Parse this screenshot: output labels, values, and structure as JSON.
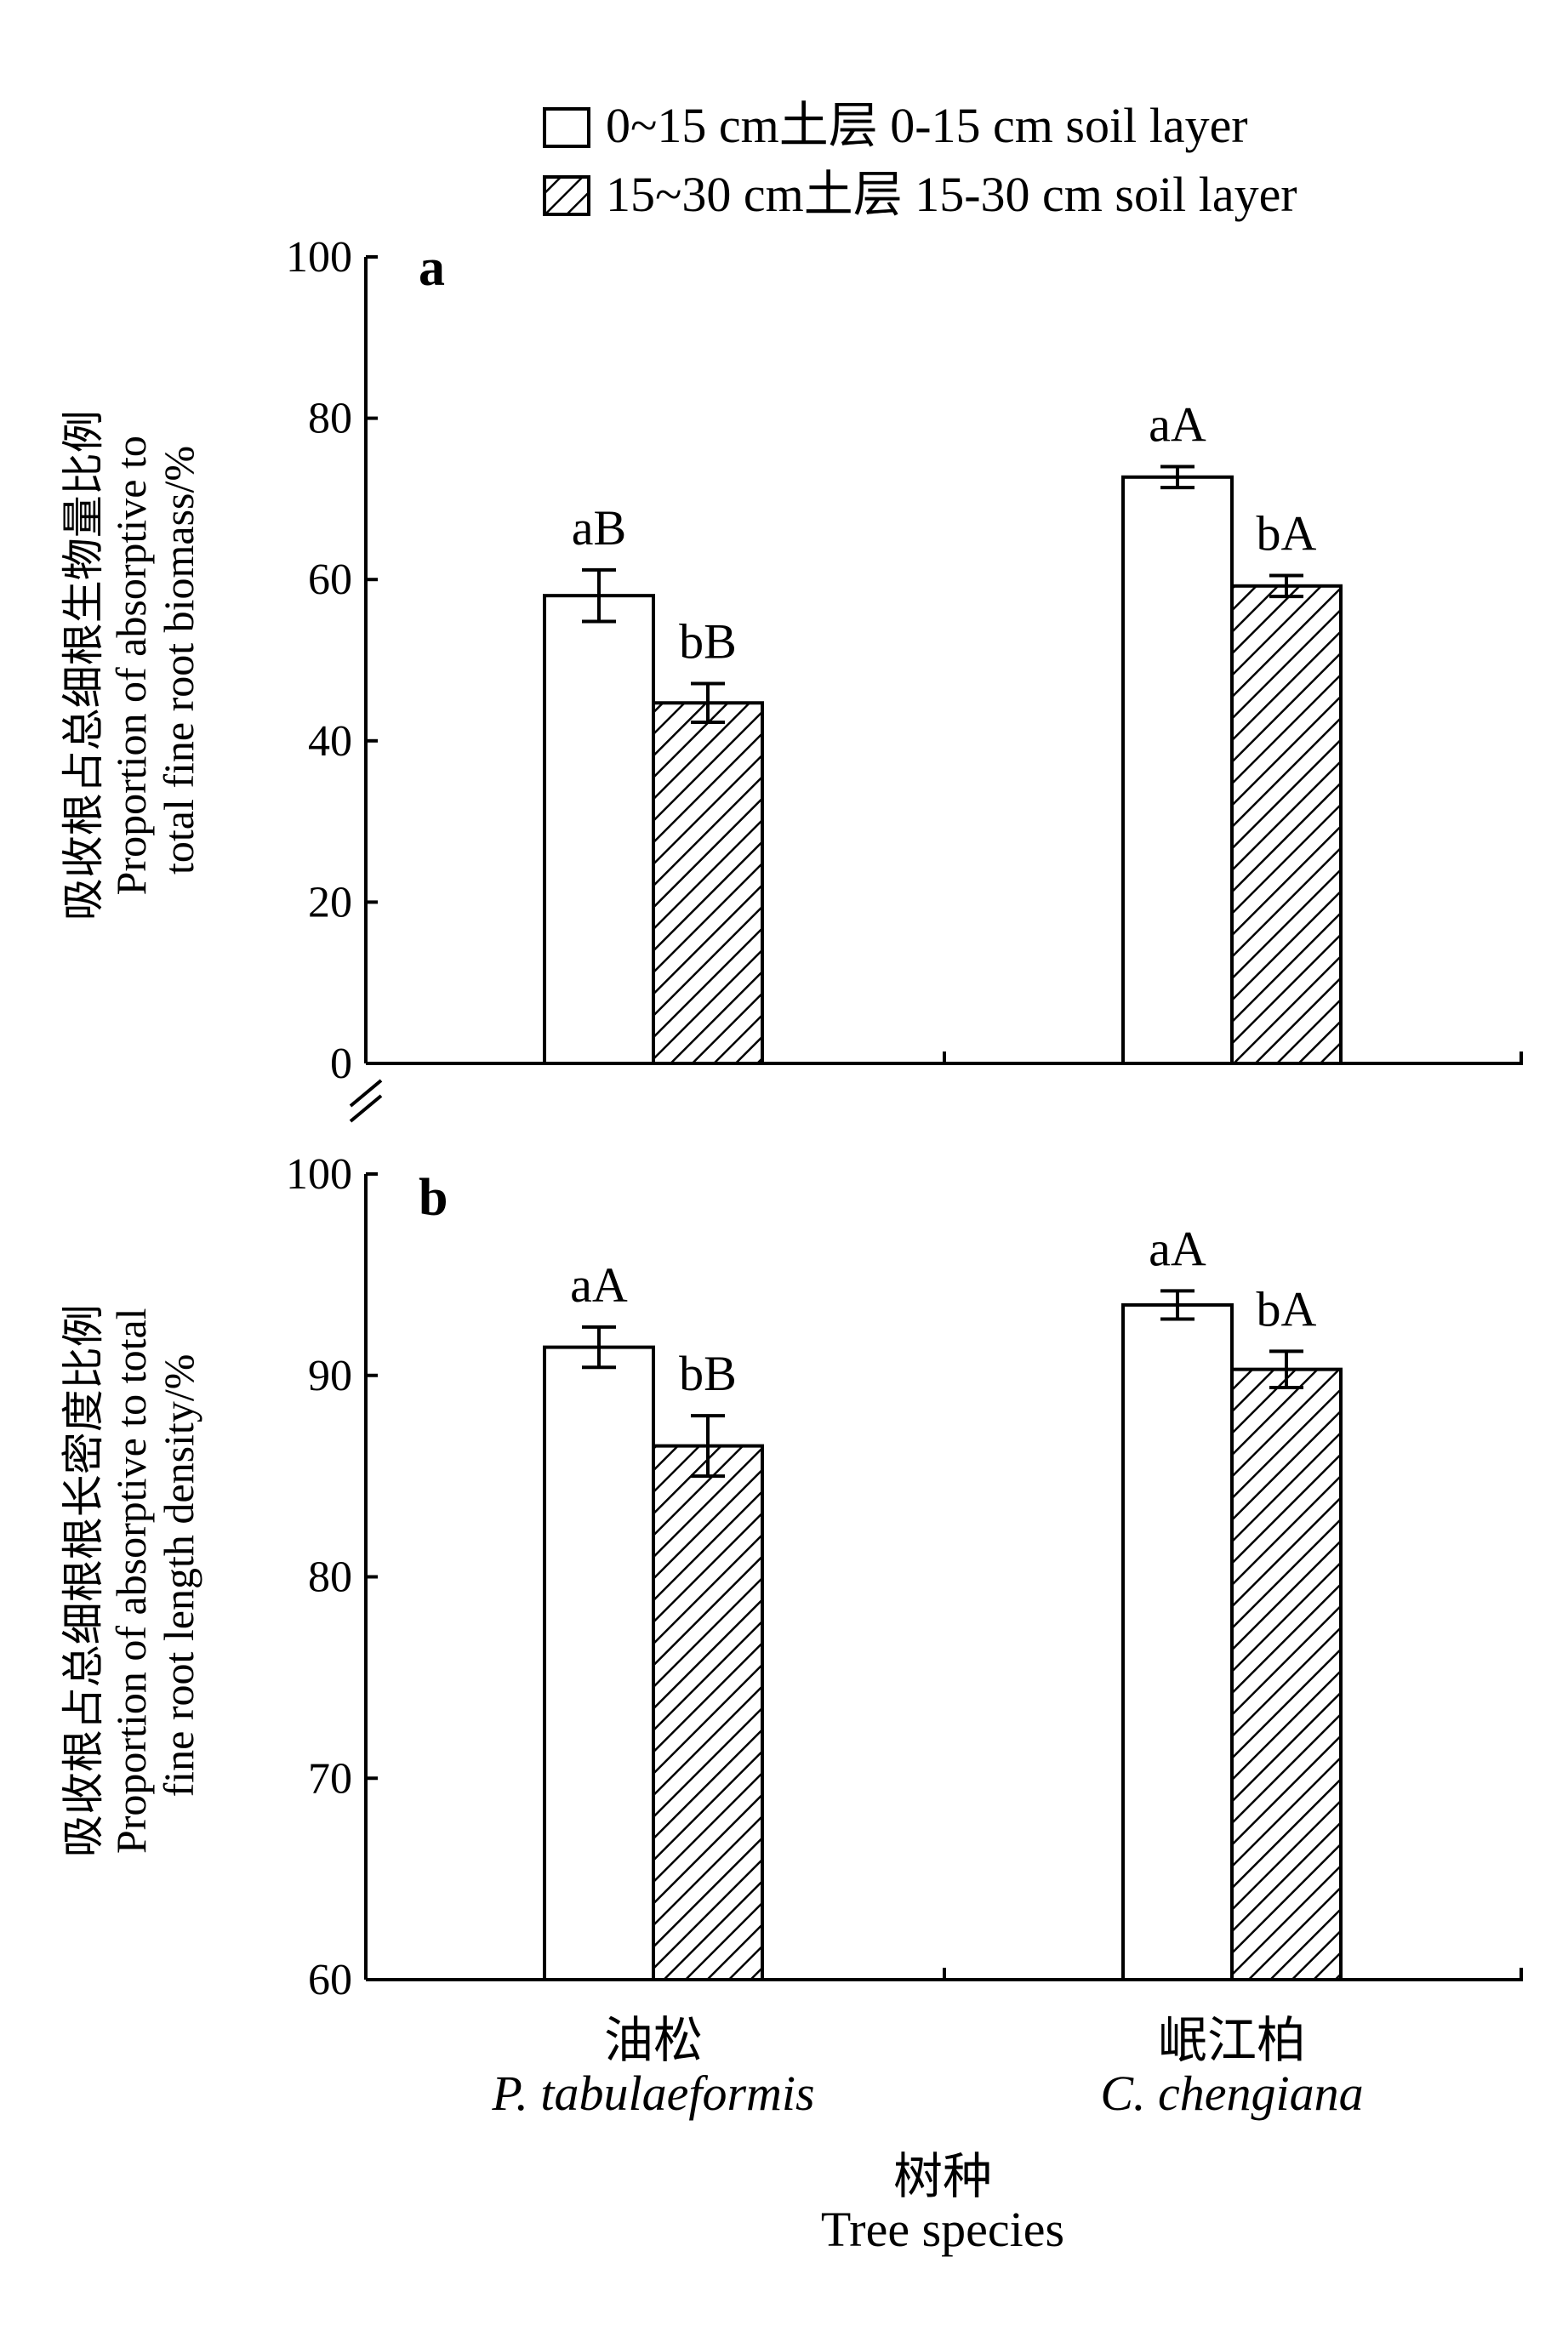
{
  "chart_data": [
    {
      "type": "bar",
      "panel_label": "a",
      "ylabel": [
        "吸收根占总细根生物量比例",
        "Proportion of absorptive to",
        "total fine root biomass/%"
      ],
      "ylim": [
        0,
        100
      ],
      "yticks": [
        0,
        20,
        40,
        60,
        80,
        100
      ],
      "categories": [
        "P. tabulaeformis",
        "C. chengiana"
      ],
      "series": [
        {
          "name": "0~15 cm土层 0-15 cm soil layer",
          "values": [
            58,
            72.7
          ],
          "errors": [
            3.2,
            1.3
          ],
          "labels": [
            "aB",
            "aA"
          ]
        },
        {
          "name": "15~30 cm土层 15-30 cm soil layer",
          "values": [
            44.7,
            59.2
          ],
          "errors": [
            2.4,
            1.3
          ],
          "labels": [
            "bB",
            "bA"
          ]
        }
      ]
    },
    {
      "type": "bar",
      "panel_label": "b",
      "ylabel": [
        "吸收根占总细根根长密度比例",
        "Proportion of absorptive to total",
        "fine root length density/%"
      ],
      "ylim": [
        60,
        100
      ],
      "yticks": [
        60,
        70,
        80,
        90,
        100
      ],
      "categories": [
        "P. tabulaeformis",
        "C. chengiana"
      ],
      "series": [
        {
          "name": "0~15 cm土层 0-15 cm soil layer",
          "values": [
            91.4,
            93.5
          ],
          "errors": [
            1.0,
            0.7
          ],
          "labels": [
            "aA",
            "aA"
          ]
        },
        {
          "name": "15~30 cm土层 15-30 cm soil layer",
          "values": [
            86.5,
            90.3
          ],
          "errors": [
            1.5,
            0.9
          ],
          "labels": [
            "bB",
            "bA"
          ]
        }
      ]
    }
  ],
  "x_axis": {
    "categories": [
      {
        "zh": "油松",
        "en": "P. tabulaeformis"
      },
      {
        "zh": "岷江柏",
        "en": "C. chengiana"
      }
    ],
    "title_zh": "树种",
    "title_en": "Tree species"
  },
  "legend": {
    "placement": "top-center",
    "entries": [
      {
        "label": "0~15 cm土层 0-15 cm soil layer",
        "fill": "white"
      },
      {
        "label": "15~30 cm土层 15-30 cm soil layer",
        "fill": "hatched"
      }
    ]
  }
}
